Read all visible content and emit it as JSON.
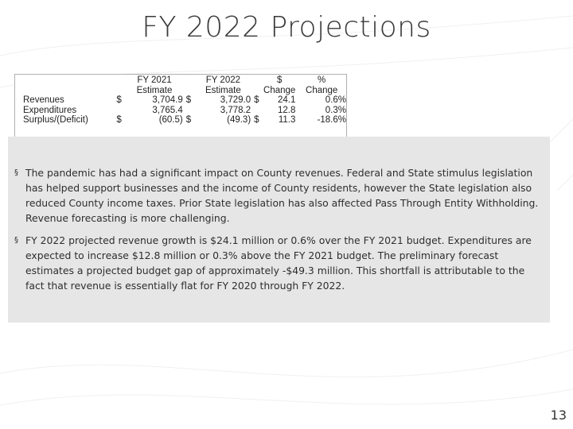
{
  "slide": {
    "title": "FY 2022 Projections",
    "page_number": "13"
  },
  "table": {
    "header_row1": [
      "",
      "",
      "FY 2021",
      "",
      "FY 2022",
      "",
      "$",
      "%"
    ],
    "header_row2": [
      "",
      "",
      "Estimate",
      "",
      "Estimate",
      "",
      "Change",
      "Change"
    ],
    "rows": [
      {
        "label": "Revenues",
        "sym1": "$",
        "fy2021": "3,704.9",
        "sym2": "$",
        "fy2022": "3,729.0",
        "sym3": "$",
        "change": "24.1",
        "pct": "0.6%"
      },
      {
        "label": "Expenditures",
        "sym1": "",
        "fy2021": "3,765.4",
        "sym2": "",
        "fy2022": "3,778.2",
        "sym3": "",
        "change": "12.8",
        "pct": "0.3%"
      },
      {
        "label": "Surplus/(Deficit)",
        "sym1": "$",
        "fy2021": "(60.5)",
        "sym2": "$",
        "fy2022": "(49.3)",
        "sym3": "$",
        "change": "11.3",
        "pct": "-18.6%"
      }
    ]
  },
  "bullets": [
    {
      "marker": "§",
      "text": "The pandemic has had a significant impact on County revenues.  Federal and State stimulus legislation has helped support businesses and the income of County residents, however the State legislation also reduced County income taxes. Prior State legislation has also affected Pass Through Entity Withholding. Revenue forecasting is more challenging."
    },
    {
      "marker": "§",
      "text": "FY 2022 projected revenue growth is $24.1 million or 0.6% over the FY 2021 budget. Expenditures are expected to increase $12.8 million or 0.3% above the FY 2021 budget. The preliminary forecast estimates a projected budget gap of approximately -$49.3 million. This shortfall is attributable to the fact that revenue is essentially flat for FY 2020 through FY 2022."
    }
  ],
  "colors": {
    "background": "#ffffff",
    "content_box": "#e6e6e6",
    "title_text": "#3a3a3a"
  }
}
